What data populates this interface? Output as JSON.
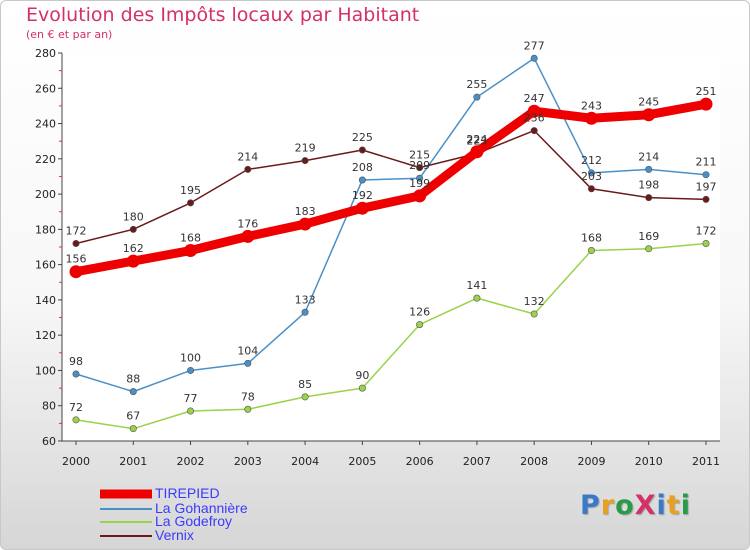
{
  "title": "Evolution des Impôts locaux par Habitant",
  "subtitle": "(en € et par an)",
  "logo": {
    "text": "ProXiti",
    "colors": [
      "#3a78c8",
      "#e8a020",
      "#2a9a4a",
      "#d4306a",
      "#3a78c8",
      "#e8a020",
      "#2a9a4a"
    ]
  },
  "chart_data": {
    "type": "line",
    "x": [
      "2000",
      "2001",
      "2002",
      "2003",
      "2004",
      "2005",
      "2006",
      "2007",
      "2008",
      "2009",
      "2010",
      "2011"
    ],
    "ylim": [
      60,
      280
    ],
    "yticks": [
      60,
      80,
      100,
      120,
      140,
      160,
      180,
      200,
      220,
      240,
      260,
      280
    ],
    "grid": false,
    "legend_position": "bottom-left",
    "series": [
      {
        "name": "TIREPIED",
        "color": "#ee0000",
        "width": 9,
        "values": [
          156,
          162,
          168,
          176,
          183,
          192,
          199,
          224,
          247,
          243,
          245,
          251
        ]
      },
      {
        "name": "La Gohannière",
        "color": "#4a90c8",
        "width": 1.5,
        "values": [
          98,
          88,
          100,
          104,
          133,
          208,
          209,
          255,
          277,
          212,
          214,
          211
        ]
      },
      {
        "name": "La Godefroy",
        "color": "#9ad24a",
        "width": 1.5,
        "values": [
          72,
          67,
          77,
          78,
          85,
          90,
          126,
          141,
          132,
          168,
          169,
          172
        ]
      },
      {
        "name": "Vernix",
        "color": "#6b1a1a",
        "width": 1.5,
        "values": [
          172,
          180,
          195,
          214,
          219,
          225,
          215,
          223,
          236,
          203,
          198,
          197
        ]
      }
    ]
  }
}
